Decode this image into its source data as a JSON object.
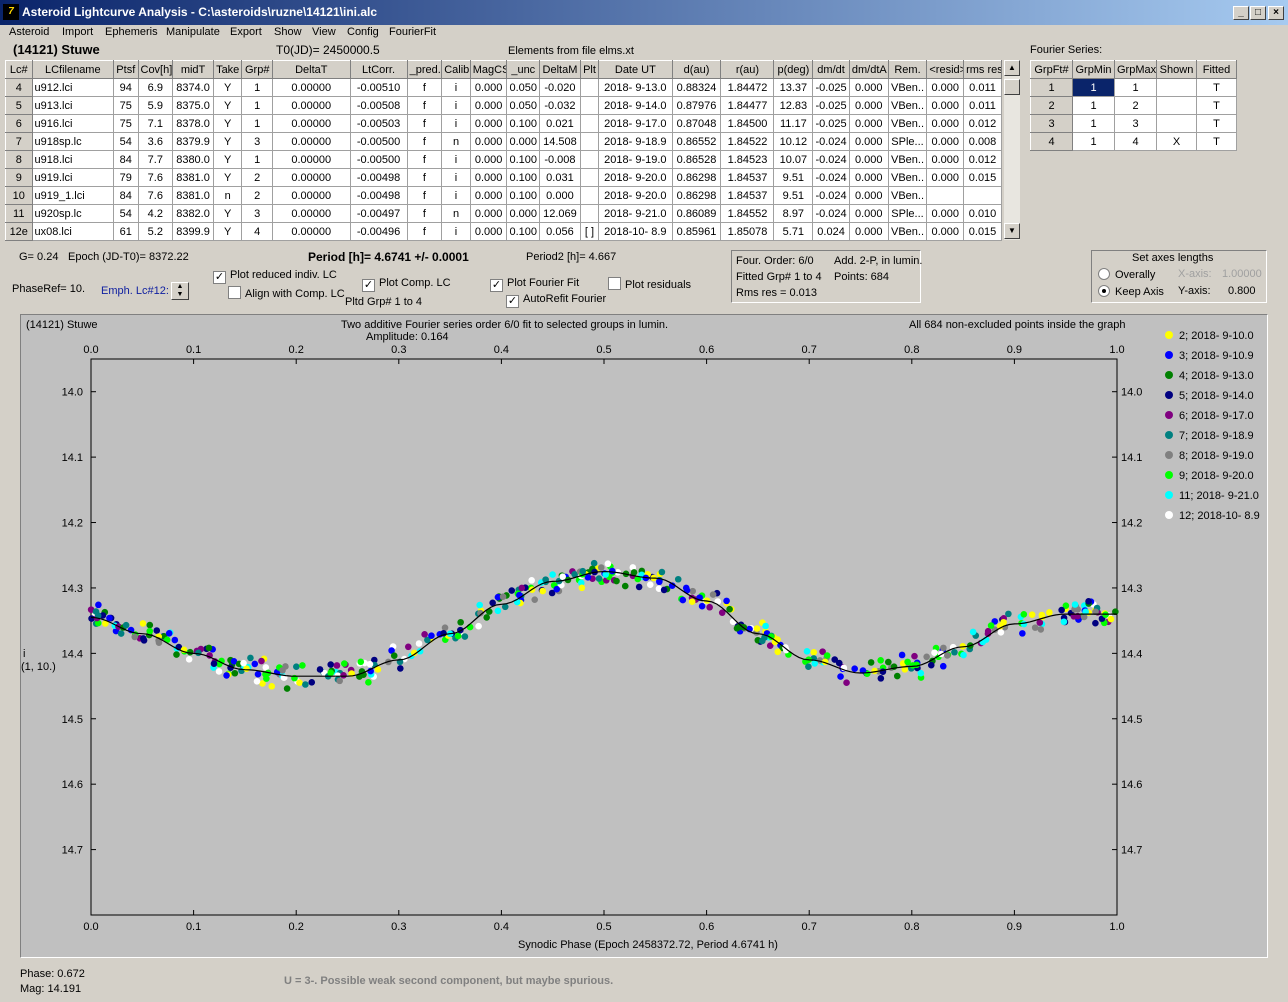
{
  "window": {
    "title": "Asteroid Lightcurve Analysis - C:\\asteroids\\ruzne\\14121\\ini.alc",
    "icon": "app-icon"
  },
  "menu": [
    "Asteroid",
    "Import",
    "Ephemeris",
    "Manipulate",
    "Export",
    "Show",
    "View",
    "Config",
    "FourierFit"
  ],
  "header": {
    "asteroid": "(14121) Stuwe",
    "t0": "T0(JD)= 2450000.5",
    "elements": "Elements from file elms.xt"
  },
  "lc_table": {
    "columns": [
      "Lc#",
      "LCfilename",
      "Ptsf",
      "Cov[h]",
      "midT",
      "Take",
      "Grp#",
      "DeltaT",
      "LtCorr.",
      "_pred.",
      "Calib.",
      "MagCS",
      "_unc",
      "DeltaM",
      "Plt",
      "Date UT",
      "d(au)",
      "r(au)",
      "p(deg)",
      "dm/dt",
      "dm/dtA",
      "Rem.",
      "<resid>",
      "rms res"
    ],
    "rows": [
      [
        "4",
        "u912.lci",
        "94",
        "6.9",
        "8374.0",
        "Y",
        "1",
        "0.00000",
        "-0.00510",
        "f",
        "i",
        "0.000",
        "0.050",
        "-0.020",
        "",
        "2018- 9-13.0",
        "0.88324",
        "1.84472",
        "13.37",
        "-0.025",
        "0.000",
        "VBen..",
        "0.000",
        "0.011"
      ],
      [
        "5",
        "u913.lci",
        "75",
        "5.9",
        "8375.0",
        "Y",
        "1",
        "0.00000",
        "-0.00508",
        "f",
        "i",
        "0.000",
        "0.050",
        "-0.032",
        "",
        "2018- 9-14.0",
        "0.87976",
        "1.84477",
        "12.83",
        "-0.025",
        "0.000",
        "VBen..",
        "0.000",
        "0.011"
      ],
      [
        "6",
        "u916.lci",
        "75",
        "7.1",
        "8378.0",
        "Y",
        "1",
        "0.00000",
        "-0.00503",
        "f",
        "i",
        "0.000",
        "0.100",
        "0.021",
        "",
        "2018- 9-17.0",
        "0.87048",
        "1.84500",
        "11.17",
        "-0.025",
        "0.000",
        "VBen..",
        "0.000",
        "0.012"
      ],
      [
        "7",
        "u918sp.lc",
        "54",
        "3.6",
        "8379.9",
        "Y",
        "3",
        "0.00000",
        "-0.00500",
        "f",
        "n",
        "0.000",
        "0.000",
        "14.508",
        "",
        "2018- 9-18.9",
        "0.86552",
        "1.84522",
        "10.12",
        "-0.024",
        "0.000",
        "SPle...",
        "0.000",
        "0.008"
      ],
      [
        "8",
        "u918.lci",
        "84",
        "7.7",
        "8380.0",
        "Y",
        "1",
        "0.00000",
        "-0.00500",
        "f",
        "i",
        "0.000",
        "0.100",
        "-0.008",
        "",
        "2018- 9-19.0",
        "0.86528",
        "1.84523",
        "10.07",
        "-0.024",
        "0.000",
        "VBen..",
        "0.000",
        "0.012"
      ],
      [
        "9",
        "u919.lci",
        "79",
        "7.6",
        "8381.0",
        "Y",
        "2",
        "0.00000",
        "-0.00498",
        "f",
        "i",
        "0.000",
        "0.100",
        "0.031",
        "",
        "2018- 9-20.0",
        "0.86298",
        "1.84537",
        "9.51",
        "-0.024",
        "0.000",
        "VBen..",
        "0.000",
        "0.015"
      ],
      [
        "10",
        "u919_1.lci",
        "84",
        "7.6",
        "8381.0",
        "n",
        "2",
        "0.00000",
        "-0.00498",
        "f",
        "i",
        "0.000",
        "0.100",
        "0.000",
        "",
        "2018- 9-20.0",
        "0.86298",
        "1.84537",
        "9.51",
        "-0.024",
        "0.000",
        "VBen..",
        "",
        ""
      ],
      [
        "11",
        "u920sp.lc",
        "54",
        "4.2",
        "8382.0",
        "Y",
        "3",
        "0.00000",
        "-0.00497",
        "f",
        "n",
        "0.000",
        "0.000",
        "12.069",
        "",
        "2018- 9-21.0",
        "0.86089",
        "1.84552",
        "8.97",
        "-0.024",
        "0.000",
        "SPle...",
        "0.000",
        "0.010"
      ],
      [
        "12e",
        "ux08.lci",
        "61",
        "5.2",
        "8399.9",
        "Y",
        "4",
        "0.00000",
        "-0.00496",
        "f",
        "i",
        "0.000",
        "0.100",
        "0.056",
        "[ ]",
        "2018-10- 8.9",
        "0.85961",
        "1.85078",
        "5.71",
        "0.024",
        "0.000",
        "VBen..",
        "0.000",
        "0.015"
      ]
    ]
  },
  "fourier_series": {
    "label": "Fourier Series:",
    "columns": [
      "GrpFt#",
      "GrpMin",
      "GrpMax",
      "Shown",
      "Fitted"
    ],
    "rows": [
      [
        "1",
        "1",
        "1",
        "",
        "T"
      ],
      [
        "2",
        "1",
        "2",
        "",
        "T"
      ],
      [
        "3",
        "1",
        "3",
        "",
        "T"
      ],
      [
        "4",
        "1",
        "4",
        "X",
        "T"
      ]
    ]
  },
  "info": {
    "g": "G= 0.24",
    "epoch": "Epoch (JD-T0)= 8372.22",
    "period": "Period [h]= 4.6741 +/- 0.0001",
    "period2": "Period2 [h]= 4.667",
    "phaseref": "PhaseRef= 10.",
    "emph": "Emph. Lc#12:"
  },
  "options": {
    "plot_reduced": "Plot reduced indiv. LC",
    "align": "Align with Comp. LC",
    "plot_comp": "Plot Comp. LC",
    "pltd_grp": "Pltd Grp#  1   to   4",
    "plot_fourier": "Plot Fourier Fit",
    "autorefit": "AutoRefit Fourier",
    "plot_residuals": "Plot residuals"
  },
  "fit_box": {
    "order": "Four. Order:  6/0",
    "add": "Add. 2-P, in lumin.",
    "fitted": "Fitted Grp# 1 to 4",
    "points": "Points: 684",
    "rms": "Rms res     = 0.013"
  },
  "axes_box": {
    "title": "Set axes lengths",
    "overally": "Overally",
    "keep": "Keep Axis",
    "xaxis_label": "X-axis:",
    "xaxis_val": "1.00000",
    "yaxis_label": "Y-axis:",
    "yaxis_val": "0.800"
  },
  "plot": {
    "name": "(14121) Stuwe",
    "subtitle": "Two additive Fourier series order 6/0 fit to selected groups in lumin.",
    "amplitude": "Amplitude: 0.164",
    "note": "All 684 non-excluded points inside the graph",
    "ylabel1": "i",
    "ylabel2": "(1, 10.)",
    "xlabel": "Synodic Phase (Epoch 2458372.72, Period 4.6741 h)"
  },
  "status": {
    "phase": "Phase:  0.672",
    "mag": "Mag:    14.191",
    "comment": "U = 3-.  Possible weak second component, but maybe spurious."
  },
  "chart_data": {
    "type": "scatter",
    "title": "(14121) Stuwe",
    "subtitle": "Two additive Fourier series order 6/0 fit to selected groups in lumin.",
    "xlabel": "Synodic Phase (Epoch 2458372.72, Period 4.6741 h)",
    "ylabel": "i (1, 10.)",
    "xlim": [
      0,
      1
    ],
    "ylim": [
      14.8,
      13.95
    ],
    "x_ticks": [
      "0.0",
      "0.1",
      "0.2",
      "0.3",
      "0.4",
      "0.5",
      "0.6",
      "0.7",
      "0.8",
      "0.9",
      "1.0"
    ],
    "y_ticks": [
      "14.0",
      "14.1",
      "14.2",
      "14.3",
      "14.4",
      "14.5",
      "14.6",
      "14.7"
    ],
    "fit_curve": {
      "x": [
        0,
        0.05,
        0.1,
        0.15,
        0.2,
        0.25,
        0.3,
        0.35,
        0.4,
        0.45,
        0.5,
        0.55,
        0.6,
        0.65,
        0.7,
        0.75,
        0.8,
        0.85,
        0.9,
        0.95,
        1.0
      ],
      "y": [
        14.345,
        14.37,
        14.4,
        14.425,
        14.435,
        14.435,
        14.41,
        14.37,
        14.325,
        14.29,
        14.275,
        14.285,
        14.32,
        14.37,
        14.41,
        14.43,
        14.42,
        14.39,
        14.355,
        14.34,
        14.34
      ]
    },
    "series": [
      {
        "name": "2; 2018- 9-10.0",
        "color": "#ffff00"
      },
      {
        "name": "3; 2018- 9-10.9",
        "color": "#0000ff"
      },
      {
        "name": "4; 2018- 9-13.0",
        "color": "#008000"
      },
      {
        "name": "5; 2018- 9-14.0",
        "color": "#000080"
      },
      {
        "name": "6; 2018- 9-17.0",
        "color": "#800080"
      },
      {
        "name": "7; 2018- 9-18.9",
        "color": "#008080"
      },
      {
        "name": "8; 2018- 9-19.0",
        "color": "#808080"
      },
      {
        "name": "9; 2018- 9-20.0",
        "color": "#00ff00"
      },
      {
        "name": "11; 2018- 9-21.0",
        "color": "#00ffff"
      },
      {
        "name": "12; 2018-10- 8.9",
        "color": "#ffffff"
      }
    ],
    "points": 684
  }
}
